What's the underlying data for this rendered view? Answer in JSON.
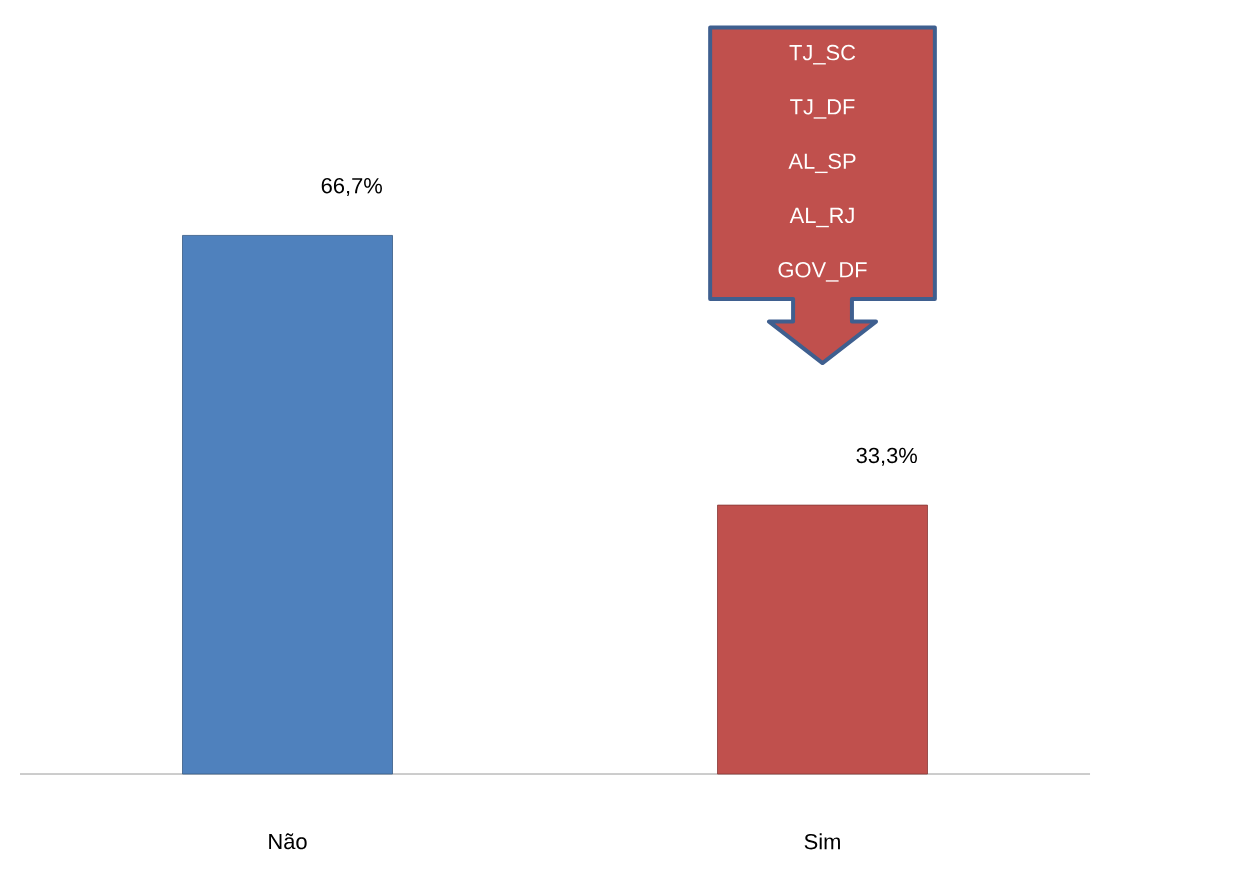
{
  "chart_data": {
    "type": "bar",
    "categories": [
      "Não",
      "Sim"
    ],
    "values": [
      66.7,
      33.3
    ],
    "colors": [
      "#4f81bd",
      "#c0504d"
    ],
    "value_labels": [
      "66,7%",
      "33,3%"
    ],
    "annotations": [
      "TJ_SC",
      "TJ_DF",
      "AL_SP",
      "AL_RJ",
      "GOV_DF"
    ]
  }
}
